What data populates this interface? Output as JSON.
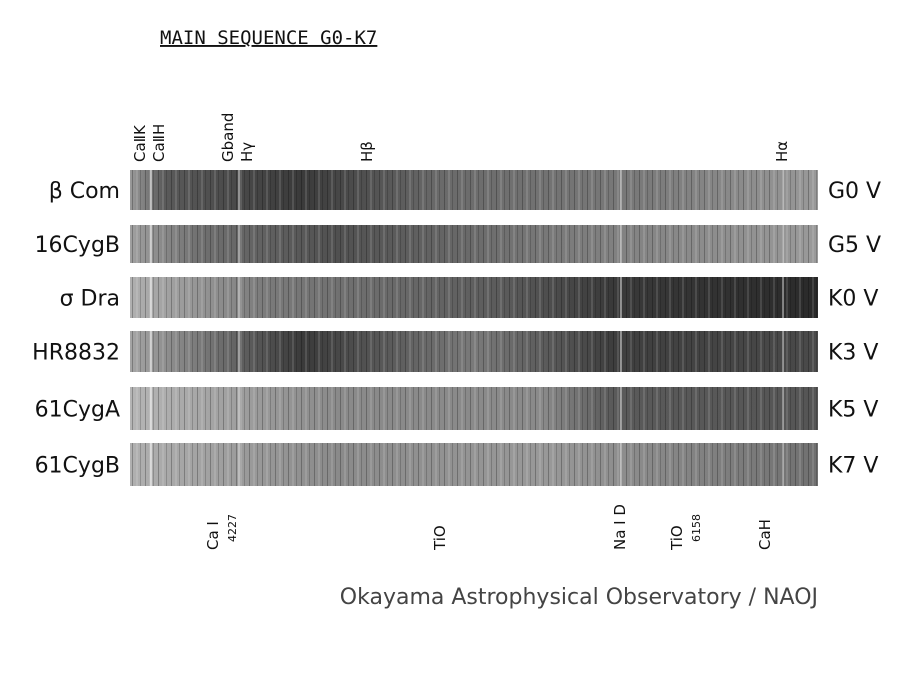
{
  "title": "MAIN SEQUENCE G0-K7",
  "spectra": [
    {
      "star": "β Com",
      "type": "G0 V"
    },
    {
      "star": "16CygB",
      "type": "G5 V"
    },
    {
      "star": "σ Dra",
      "type": "K0 V"
    },
    {
      "star": "HR8832",
      "type": "K3 V"
    },
    {
      "star": "61CygA",
      "type": "K5 V"
    },
    {
      "star": "61CygB",
      "type": "K7 V"
    }
  ],
  "top_lines": [
    "CaⅡK",
    "CaⅡH",
    "Gband",
    "Hγ",
    "Hβ",
    "Hα"
  ],
  "bottom_lines": [
    {
      "label": "Ca I",
      "sub": "4227"
    },
    {
      "label": "TiO"
    },
    {
      "label": "Na I D"
    },
    {
      "label": "TiO",
      "sub": "6158"
    },
    {
      "label": "CaH"
    }
  ],
  "credit": "Okayama Astrophysical Observatory / NAOJ"
}
